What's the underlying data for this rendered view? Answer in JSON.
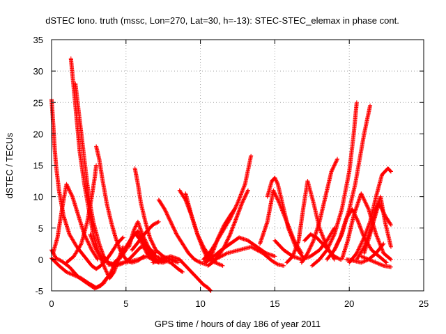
{
  "chart_data": {
    "type": "scatter",
    "title": "dSTEC Iono. truth (mssc, Lon=270, Lat=30, h=-13): STEC-STEC_elemax in phase cont.",
    "xlabel": "GPS time / hours of day 186 of year 2011",
    "ylabel": "dSTEC  / TECUs",
    "xlim": [
      0,
      25
    ],
    "ylim": [
      -5,
      35
    ],
    "x_ticks": [
      0,
      5,
      10,
      15,
      20,
      25
    ],
    "y_ticks": [
      -5,
      0,
      5,
      10,
      15,
      20,
      25,
      30,
      35
    ],
    "grid": true,
    "marker": "+",
    "colors": {
      "series": "#ff0000",
      "grid": "#a0a0a0"
    },
    "series": [
      {
        "x": [
          0.0,
          0.1,
          0.2,
          0.3,
          0.5,
          0.8,
          1.2,
          1.7,
          2.2,
          2.7,
          3.0,
          3.3,
          3.7,
          4.0,
          4.4,
          4.8
        ],
        "y": [
          25.5,
          22.0,
          18.0,
          15.0,
          11.0,
          7.0,
          4.0,
          2.0,
          0.5,
          -1.0,
          -1.5,
          -1.0,
          0.0,
          1.0,
          2.5,
          3.5
        ]
      },
      {
        "x": [
          1.3,
          1.5,
          1.7,
          1.9,
          2.2,
          2.5,
          2.8,
          3.1,
          3.4,
          3.8,
          4.3,
          4.8
        ],
        "y": [
          32.0,
          27.0,
          22.0,
          17.0,
          12.0,
          8.0,
          4.0,
          1.5,
          0.0,
          -0.5,
          -0.8,
          -0.5
        ]
      },
      {
        "x": [
          1.6,
          1.9,
          2.2,
          2.5,
          2.8,
          3.2,
          3.5,
          3.8,
          4.2
        ],
        "y": [
          28.0,
          22.0,
          16.0,
          10.0,
          6.0,
          2.5,
          0.5,
          -0.5,
          -1.0
        ]
      },
      {
        "x": [
          0.0,
          0.3,
          0.7,
          1.2,
          1.8,
          2.4,
          2.9,
          3.3,
          3.7,
          4.1
        ],
        "y": [
          1.5,
          0.2,
          -0.3,
          -1.2,
          -2.8,
          -3.8,
          -4.6,
          -4.2,
          -3.0,
          -2.0
        ]
      },
      {
        "x": [
          0.0,
          0.5,
          1.0,
          1.5,
          2.0,
          2.5,
          3.0,
          3.5,
          4.0,
          4.4
        ],
        "y": [
          0.2,
          -1.0,
          -2.0,
          -2.5,
          -3.0,
          -3.8,
          -4.5,
          -3.8,
          -2.0,
          0.0
        ]
      },
      {
        "x": [
          0.1,
          0.4,
          0.7,
          1.0,
          1.4,
          1.8,
          2.2,
          2.7,
          3.1
        ],
        "y": [
          1.0,
          3.5,
          8.0,
          12.0,
          10.0,
          7.0,
          4.0,
          1.5,
          0.0
        ]
      },
      {
        "x": [
          1.0,
          1.5,
          2.0,
          2.4,
          2.7,
          2.9,
          3.0
        ],
        "y": [
          -0.5,
          0.5,
          2.5,
          6.0,
          10.0,
          13.0,
          15.0
        ]
      },
      {
        "x": [
          2.6,
          2.9,
          3.3,
          3.6,
          3.9,
          4.2,
          4.5,
          4.8
        ],
        "y": [
          4.0,
          2.0,
          0.2,
          -1.5,
          -3.0,
          -2.0,
          0.0,
          2.0
        ]
      },
      {
        "x": [
          3.0,
          3.2,
          3.4,
          3.7,
          4.0,
          4.3,
          4.6,
          5.0,
          5.4,
          5.8,
          6.2
        ],
        "y": [
          18.0,
          16.0,
          13.0,
          9.0,
          6.0,
          3.5,
          1.5,
          0.0,
          -0.5,
          -0.2,
          0.5
        ]
      },
      {
        "x": [
          3.8,
          4.3,
          4.8,
          5.2,
          5.6,
          6.0,
          6.4,
          7.0
        ],
        "y": [
          -0.8,
          -1.0,
          -0.6,
          0.0,
          1.0,
          2.0,
          1.8,
          1.0
        ]
      },
      {
        "x": [
          4.2,
          4.6,
          5.0,
          5.3,
          5.6,
          6.0,
          6.4,
          6.8,
          7.2
        ],
        "y": [
          -0.5,
          0.2,
          1.5,
          3.0,
          4.2,
          3.0,
          1.0,
          0.0,
          -0.5
        ]
      },
      {
        "x": [
          4.6,
          5.0,
          5.4,
          5.8,
          6.2,
          6.6,
          7.0,
          7.5
        ],
        "y": [
          0.5,
          2.0,
          3.5,
          4.5,
          2.5,
          1.0,
          0.0,
          -0.3
        ]
      },
      {
        "x": [
          5.2,
          5.5,
          5.8,
          6.1,
          6.5,
          7.0,
          7.5,
          8.0,
          8.5,
          8.8
        ],
        "y": [
          2.0,
          4.5,
          6.0,
          4.0,
          2.0,
          0.5,
          0.0,
          -0.5,
          -1.5,
          -2.0
        ]
      },
      {
        "x": [
          5.6,
          5.8,
          6.0,
          6.3,
          6.6,
          7.0,
          7.5,
          8.0,
          8.5
        ],
        "y": [
          14.5,
          12.0,
          9.0,
          6.0,
          3.5,
          1.5,
          0.5,
          0.0,
          -0.5
        ]
      },
      {
        "x": [
          5.4,
          5.9,
          6.4,
          6.8,
          7.2
        ],
        "y": [
          1.5,
          3.0,
          4.5,
          5.5,
          6.0
        ]
      },
      {
        "x": [
          5.0,
          5.8,
          6.4,
          7.0,
          7.5,
          8.0,
          8.3
        ],
        "y": [
          -0.5,
          0.0,
          0.5,
          -0.3,
          -0.5,
          0.0,
          -0.2
        ]
      },
      {
        "x": [
          7.2,
          7.6,
          8.0,
          8.4,
          8.8,
          9.2,
          9.6,
          10.0,
          10.4
        ],
        "y": [
          9.5,
          8.0,
          6.0,
          4.0,
          2.5,
          1.0,
          0.0,
          -0.5,
          -0.8
        ]
      },
      {
        "x": [
          8.6,
          9.0,
          9.4,
          9.8,
          10.2,
          10.5,
          11.0,
          11.5
        ],
        "y": [
          11.0,
          9.5,
          7.0,
          4.0,
          1.5,
          0.0,
          -0.5,
          -1.0
        ]
      },
      {
        "x": [
          9.0,
          9.4,
          9.8,
          10.2,
          10.6,
          11.0
        ],
        "y": [
          10.5,
          7.0,
          4.0,
          2.0,
          0.5,
          -0.3
        ]
      },
      {
        "x": [
          6.8,
          7.4,
          8.0,
          8.6,
          9.2,
          9.8,
          10.2,
          10.5,
          10.7
        ],
        "y": [
          -0.5,
          0.0,
          0.5,
          0.0,
          -1.5,
          -3.0,
          -4.0,
          -4.5,
          -5.0
        ]
      },
      {
        "x": [
          10.5,
          10.8,
          11.2,
          11.6,
          12.0,
          12.4,
          12.8,
          13.2
        ],
        "y": [
          -1.0,
          -0.5,
          0.5,
          2.0,
          4.0,
          6.5,
          9.0,
          11.0
        ]
      },
      {
        "x": [
          10.2,
          10.6,
          11.0,
          11.5,
          12.0,
          12.5,
          13.0,
          13.4
        ],
        "y": [
          0.0,
          1.0,
          2.5,
          4.5,
          6.5,
          9.0,
          12.0,
          16.5
        ]
      },
      {
        "x": [
          10.4,
          10.8,
          11.2,
          11.6,
          12.0,
          12.3
        ],
        "y": [
          -0.5,
          1.0,
          3.5,
          5.5,
          7.0,
          8.0
        ]
      },
      {
        "x": [
          10.3,
          10.9,
          11.4,
          12.0,
          12.6,
          13.2,
          13.8,
          14.4,
          15.0
        ],
        "y": [
          -0.3,
          0.5,
          1.5,
          2.5,
          3.5,
          3.0,
          2.0,
          1.0,
          0.5
        ]
      },
      {
        "x": [
          11.0,
          11.8,
          12.6,
          13.4,
          14.2,
          14.8,
          15.2,
          15.6
        ],
        "y": [
          0.0,
          1.0,
          1.5,
          2.0,
          1.0,
          -0.2,
          -0.8,
          -1.0
        ]
      },
      {
        "x": [
          14.5,
          14.8,
          15.0,
          15.2,
          15.5,
          15.9,
          16.4,
          17.0
        ],
        "y": [
          10.0,
          12.5,
          13.0,
          12.0,
          9.0,
          5.0,
          2.0,
          0.0
        ]
      },
      {
        "x": [
          14.0,
          14.5,
          14.9,
          15.3,
          15.8,
          16.3,
          16.8
        ],
        "y": [
          2.5,
          6.0,
          11.0,
          9.0,
          6.0,
          3.0,
          1.0
        ]
      },
      {
        "x": [
          15.8,
          16.2,
          16.6,
          16.9,
          17.2,
          17.6,
          18.0,
          18.5,
          19.0
        ],
        "y": [
          -0.5,
          0.5,
          3.0,
          8.0,
          12.5,
          9.0,
          5.0,
          2.0,
          0.0
        ]
      },
      {
        "x": [
          15.0,
          15.6,
          16.2,
          16.8,
          17.4,
          18.0,
          18.5,
          19.0
        ],
        "y": [
          3.0,
          1.5,
          0.5,
          0.0,
          0.5,
          1.5,
          3.0,
          5.0
        ]
      },
      {
        "x": [
          16.8,
          17.2,
          17.6,
          18.0,
          18.4,
          18.8,
          19.2
        ],
        "y": [
          -0.5,
          1.0,
          3.0,
          6.0,
          10.0,
          14.0,
          16.0
        ]
      },
      {
        "x": [
          17.0,
          17.4,
          17.8,
          18.2,
          18.6,
          19.0,
          19.4
        ],
        "y": [
          3.0,
          4.0,
          3.5,
          2.5,
          1.5,
          0.5,
          0.0
        ]
      },
      {
        "x": [
          17.5,
          18.0,
          18.5,
          19.0,
          19.5,
          20.0,
          20.3,
          20.5
        ],
        "y": [
          -1.0,
          0.0,
          1.5,
          4.0,
          8.0,
          14.0,
          20.0,
          25.0
        ]
      },
      {
        "x": [
          18.5,
          19.0,
          19.5,
          20.0,
          20.4,
          20.7,
          21.0,
          21.4
        ],
        "y": [
          0.0,
          1.5,
          4.0,
          8.0,
          12.0,
          16.0,
          20.0,
          24.5
        ]
      },
      {
        "x": [
          19.0,
          19.4,
          19.8,
          20.2,
          20.6,
          21.0,
          21.5,
          22.0,
          22.5
        ],
        "y": [
          1.5,
          3.5,
          6.5,
          8.0,
          6.0,
          3.5,
          1.5,
          0.5,
          -0.5
        ]
      },
      {
        "x": [
          19.5,
          19.9,
          20.3,
          20.8,
          21.3,
          21.8,
          22.3,
          22.8
        ],
        "y": [
          0.0,
          3.0,
          7.0,
          10.5,
          8.0,
          4.0,
          1.0,
          0.0
        ]
      },
      {
        "x": [
          20.0,
          20.5,
          21.0,
          21.4,
          21.8,
          22.2,
          22.6,
          22.8
        ],
        "y": [
          -0.5,
          1.0,
          3.5,
          6.0,
          10.0,
          13.5,
          14.5,
          14.0
        ]
      },
      {
        "x": [
          20.5,
          21.0,
          21.5,
          22.0,
          22.4,
          22.8
        ],
        "y": [
          0.0,
          2.0,
          5.0,
          9.0,
          7.0,
          5.5
        ]
      },
      {
        "x": [
          21.0,
          21.4,
          21.8,
          22.1,
          22.4,
          22.8
        ],
        "y": [
          1.0,
          4.0,
          8.0,
          10.0,
          6.0,
          2.0
        ]
      },
      {
        "x": [
          20.8,
          21.3,
          21.8,
          22.3,
          22.8
        ],
        "y": [
          0.5,
          0.0,
          -0.5,
          -1.0,
          -1.2
        ]
      },
      {
        "x": [
          19.8,
          20.3,
          20.8,
          21.3,
          21.8,
          22.3
        ],
        "y": [
          0.0,
          -0.2,
          -0.5,
          0.0,
          1.0,
          2.5
        ]
      }
    ]
  }
}
